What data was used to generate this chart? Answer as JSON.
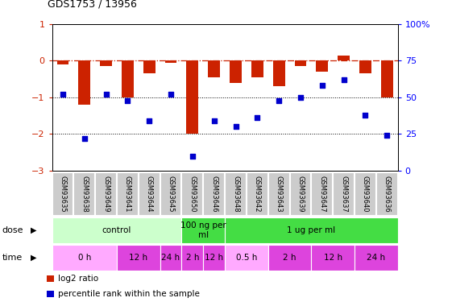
{
  "title": "GDS1753 / 13956",
  "samples": [
    "GSM93635",
    "GSM93638",
    "GSM93649",
    "GSM93641",
    "GSM93644",
    "GSM93645",
    "GSM93650",
    "GSM93646",
    "GSM93648",
    "GSM93642",
    "GSM93643",
    "GSM93639",
    "GSM93647",
    "GSM93637",
    "GSM93640",
    "GSM93636"
  ],
  "log2_ratio": [
    -0.1,
    -1.2,
    -0.15,
    -1.0,
    -0.35,
    -0.05,
    -2.0,
    -0.45,
    -0.6,
    -0.45,
    -0.7,
    -0.15,
    -0.3,
    0.15,
    -0.35,
    -1.0
  ],
  "percentile": [
    52,
    22,
    52,
    48,
    34,
    52,
    10,
    34,
    30,
    36,
    48,
    50,
    58,
    62,
    38,
    24
  ],
  "ylim_left": [
    -3,
    1
  ],
  "ylim_right": [
    0,
    100
  ],
  "bar_color": "#cc2200",
  "dot_color": "#0000cc",
  "yticks_left": [
    -3,
    -2,
    -1,
    0,
    1
  ],
  "yticks_right": [
    0,
    25,
    50,
    75,
    100
  ],
  "ytick_labels_right": [
    "0",
    "25",
    "50",
    "75",
    "100%"
  ],
  "dose_groups": [
    {
      "label": "control",
      "start": 0,
      "end": 6,
      "color": "#ccffcc"
    },
    {
      "label": "100 ng per\nml",
      "start": 6,
      "end": 8,
      "color": "#44dd44"
    },
    {
      "label": "1 ug per ml",
      "start": 8,
      "end": 16,
      "color": "#44dd44"
    }
  ],
  "time_groups": [
    {
      "label": "0 h",
      "start": 0,
      "end": 3,
      "color": "#ffaaff"
    },
    {
      "label": "12 h",
      "start": 3,
      "end": 5,
      "color": "#dd44dd"
    },
    {
      "label": "24 h",
      "start": 5,
      "end": 6,
      "color": "#dd44dd"
    },
    {
      "label": "2 h",
      "start": 6,
      "end": 7,
      "color": "#dd44dd"
    },
    {
      "label": "12 h",
      "start": 7,
      "end": 8,
      "color": "#dd44dd"
    },
    {
      "label": "0.5 h",
      "start": 8,
      "end": 10,
      "color": "#ffaaff"
    },
    {
      "label": "2 h",
      "start": 10,
      "end": 12,
      "color": "#dd44dd"
    },
    {
      "label": "12 h",
      "start": 12,
      "end": 14,
      "color": "#dd44dd"
    },
    {
      "label": "24 h",
      "start": 14,
      "end": 16,
      "color": "#dd44dd"
    }
  ],
  "legend_items": [
    {
      "color": "#cc2200",
      "label": "log2 ratio"
    },
    {
      "color": "#0000cc",
      "label": "percentile rank within the sample"
    }
  ],
  "sample_bg_color": "#cccccc",
  "sample_sep_color": "#ffffff"
}
